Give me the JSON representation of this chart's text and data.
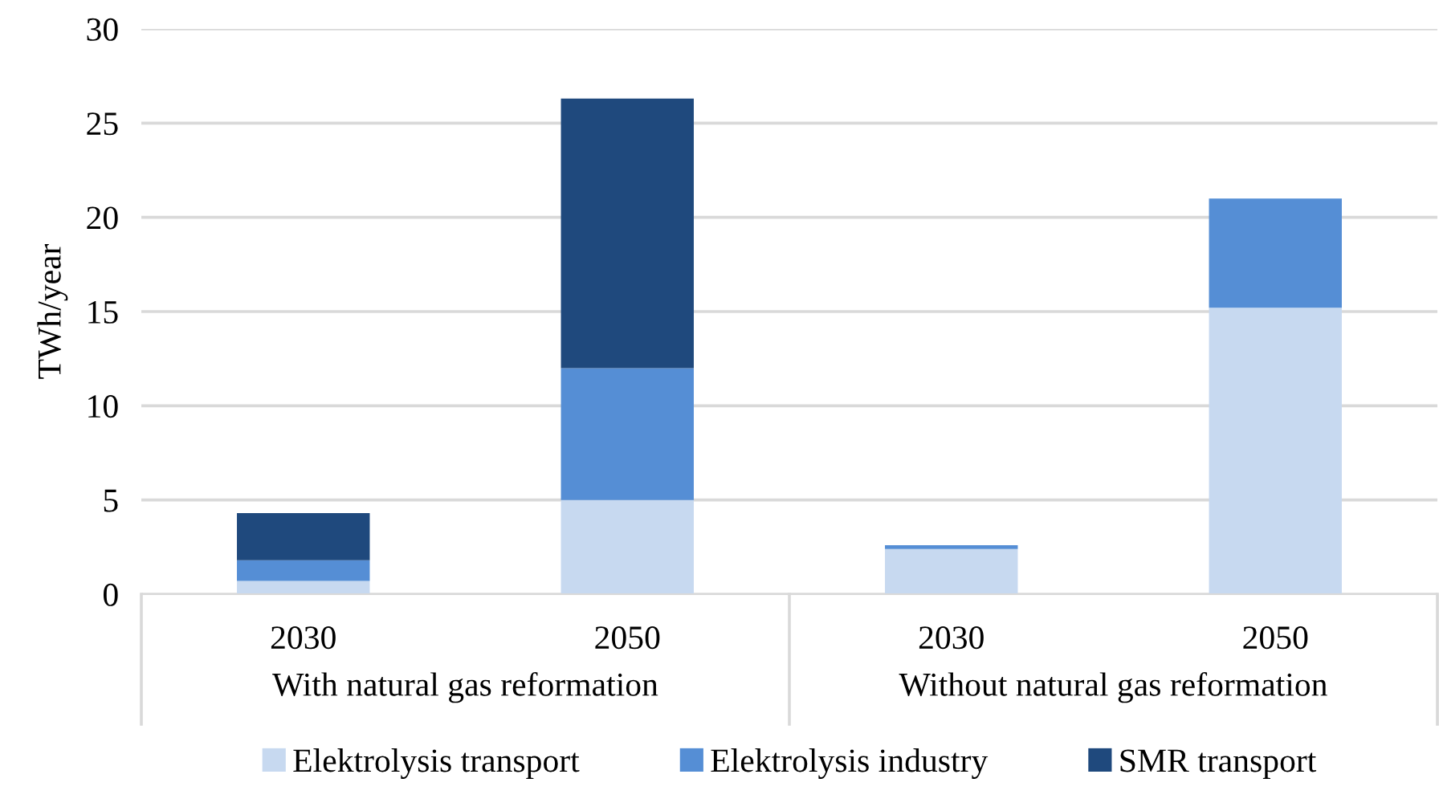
{
  "chart_data": {
    "type": "bar",
    "stacked": true,
    "ylabel": "TWh/year",
    "categories": [
      "2030",
      "2050",
      "2030",
      "2050"
    ],
    "annotations": [
      "With natural gas reformation",
      "Without natural gas reformation"
    ],
    "series": [
      {
        "name": "Elektrolysis transport",
        "color": "#c7d9f0",
        "values": [
          0.7,
          5.0,
          2.4,
          15.2
        ]
      },
      {
        "name": "Elektrolysis industry",
        "color": "#558ed5",
        "values": [
          1.1,
          7.0,
          0.2,
          5.8
        ]
      },
      {
        "name": "SMR transport",
        "color": "#1f497d",
        "values": [
          2.5,
          14.3,
          0,
          0
        ]
      }
    ],
    "ylim": [
      0,
      30
    ],
    "yticks": [
      0,
      5,
      10,
      15,
      20,
      25,
      30
    ],
    "grid": "y",
    "legend": "bottom"
  }
}
